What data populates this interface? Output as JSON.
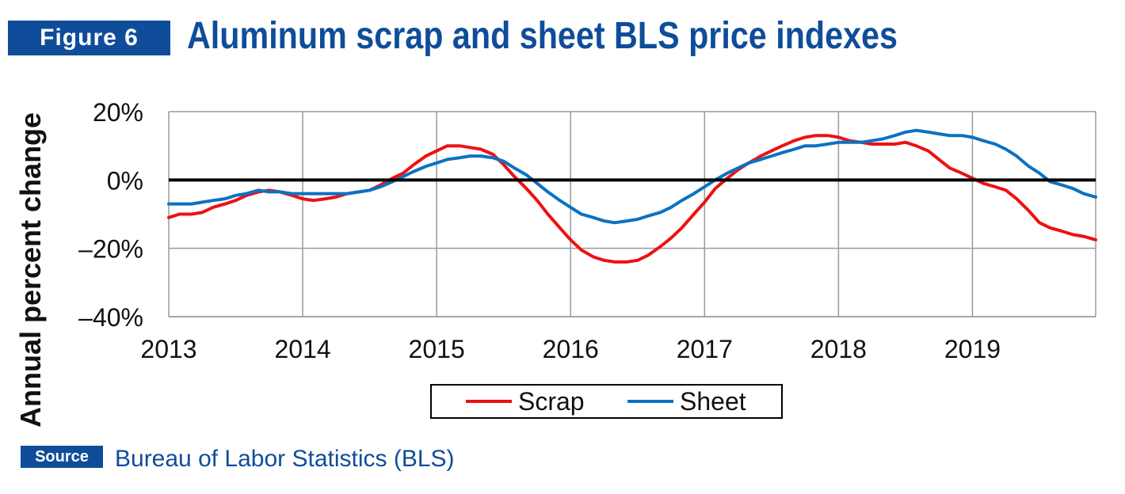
{
  "figure_label": "Figure 6",
  "title": "Aluminum scrap and sheet BLS price indexes",
  "source_label": "Source",
  "source_text": "Bureau of Labor Statistics (BLS)",
  "colors": {
    "brand_blue": "#0f4d9a",
    "scrap": "#ee1111",
    "sheet": "#0a72c3"
  },
  "chart_data": {
    "type": "line",
    "ylabel": "Annual percent change",
    "xlabel": "",
    "xlim": [
      2013,
      2019.92
    ],
    "ylim": [
      -40,
      20
    ],
    "y_ticks": [
      20,
      0,
      -20,
      -40
    ],
    "y_tick_labels": [
      "20%",
      "0%",
      "–20%",
      "–40%"
    ],
    "x_ticks": [
      2013,
      2014,
      2015,
      2016,
      2017,
      2018,
      2019
    ],
    "x_tick_labels": [
      "2013",
      "2014",
      "2015",
      "2016",
      "2017",
      "2018",
      "2019"
    ],
    "grid": true,
    "zero_line": true,
    "legend_position": "bottom",
    "series": [
      {
        "name": "Scrap",
        "color": "#ee1111",
        "x": [
          2013.0,
          2013.08,
          2013.17,
          2013.25,
          2013.33,
          2013.42,
          2013.5,
          2013.58,
          2013.67,
          2013.75,
          2013.83,
          2013.92,
          2014.0,
          2014.08,
          2014.17,
          2014.25,
          2014.33,
          2014.42,
          2014.5,
          2014.58,
          2014.67,
          2014.75,
          2014.83,
          2014.92,
          2015.0,
          2015.08,
          2015.17,
          2015.25,
          2015.33,
          2015.42,
          2015.5,
          2015.58,
          2015.67,
          2015.75,
          2015.83,
          2015.92,
          2016.0,
          2016.08,
          2016.17,
          2016.25,
          2016.33,
          2016.42,
          2016.5,
          2016.58,
          2016.67,
          2016.75,
          2016.83,
          2016.92,
          2017.0,
          2017.08,
          2017.17,
          2017.25,
          2017.33,
          2017.42,
          2017.5,
          2017.58,
          2017.67,
          2017.75,
          2017.83,
          2017.92,
          2018.0,
          2018.08,
          2018.17,
          2018.25,
          2018.33,
          2018.42,
          2018.5,
          2018.58,
          2018.67,
          2018.75,
          2018.83,
          2018.92,
          2019.0,
          2019.08,
          2019.17,
          2019.25,
          2019.33,
          2019.42,
          2019.5,
          2019.58,
          2019.67,
          2019.75,
          2019.83,
          2019.92
        ],
        "values": [
          -11,
          -10,
          -10,
          -9.5,
          -8,
          -7,
          -6,
          -4.5,
          -3.5,
          -3,
          -3.5,
          -4.5,
          -5.5,
          -6,
          -5.5,
          -5,
          -4,
          -3.5,
          -3,
          -1.5,
          0.5,
          2,
          4.5,
          7,
          8.5,
          10,
          10,
          9.5,
          9,
          7.5,
          4.5,
          1,
          -2.5,
          -6,
          -10,
          -14,
          -17.5,
          -20.5,
          -22.5,
          -23.5,
          -24,
          -24,
          -23.5,
          -22,
          -19.5,
          -17,
          -14,
          -10,
          -6.5,
          -2.5,
          0.5,
          3,
          5,
          7,
          8.5,
          10,
          11.5,
          12.5,
          13,
          13,
          12.5,
          11.5,
          11,
          10.5,
          10.5,
          10.5,
          11,
          10,
          8.5,
          6,
          3.5,
          2,
          0.5,
          -1,
          -2,
          -3,
          -5.5,
          -9,
          -12.5,
          -14,
          -15,
          -16,
          -16.5,
          -17.5
        ]
      },
      {
        "name": "Sheet",
        "color": "#0a72c3",
        "x": [
          2013.0,
          2013.08,
          2013.17,
          2013.25,
          2013.33,
          2013.42,
          2013.5,
          2013.58,
          2013.67,
          2013.75,
          2013.83,
          2013.92,
          2014.0,
          2014.08,
          2014.17,
          2014.25,
          2014.33,
          2014.42,
          2014.5,
          2014.58,
          2014.67,
          2014.75,
          2014.83,
          2014.92,
          2015.0,
          2015.08,
          2015.17,
          2015.25,
          2015.33,
          2015.42,
          2015.5,
          2015.58,
          2015.67,
          2015.75,
          2015.83,
          2015.92,
          2016.0,
          2016.08,
          2016.17,
          2016.25,
          2016.33,
          2016.42,
          2016.5,
          2016.58,
          2016.67,
          2016.75,
          2016.83,
          2016.92,
          2017.0,
          2017.08,
          2017.17,
          2017.25,
          2017.33,
          2017.42,
          2017.5,
          2017.58,
          2017.67,
          2017.75,
          2017.83,
          2017.92,
          2018.0,
          2018.08,
          2018.17,
          2018.25,
          2018.33,
          2018.42,
          2018.5,
          2018.58,
          2018.67,
          2018.75,
          2018.83,
          2018.92,
          2019.0,
          2019.08,
          2019.17,
          2019.25,
          2019.33,
          2019.42,
          2019.5,
          2019.58,
          2019.67,
          2019.75,
          2019.83,
          2019.92
        ],
        "values": [
          -7,
          -7,
          -7,
          -6.5,
          -6,
          -5.5,
          -4.5,
          -4,
          -3,
          -3.5,
          -3.5,
          -4,
          -4,
          -4,
          -4,
          -4,
          -4,
          -3.5,
          -3,
          -2,
          -0.5,
          1,
          2.5,
          4,
          5,
          6,
          6.5,
          7,
          7,
          6.5,
          5.5,
          3.5,
          1.5,
          -1,
          -3.5,
          -6,
          -8,
          -10,
          -11,
          -12,
          -12.5,
          -12,
          -11.5,
          -10.5,
          -9.5,
          -8,
          -6,
          -4,
          -2,
          0,
          2,
          3.5,
          5,
          6,
          7,
          8,
          9,
          10,
          10,
          10.5,
          11,
          11,
          11,
          11.5,
          12,
          13,
          14,
          14.5,
          14,
          13.5,
          13,
          13,
          12.5,
          11.5,
          10.5,
          9,
          7,
          4,
          2,
          -0.5,
          -1.5,
          -2.5,
          -4,
          -5
        ]
      }
    ]
  }
}
